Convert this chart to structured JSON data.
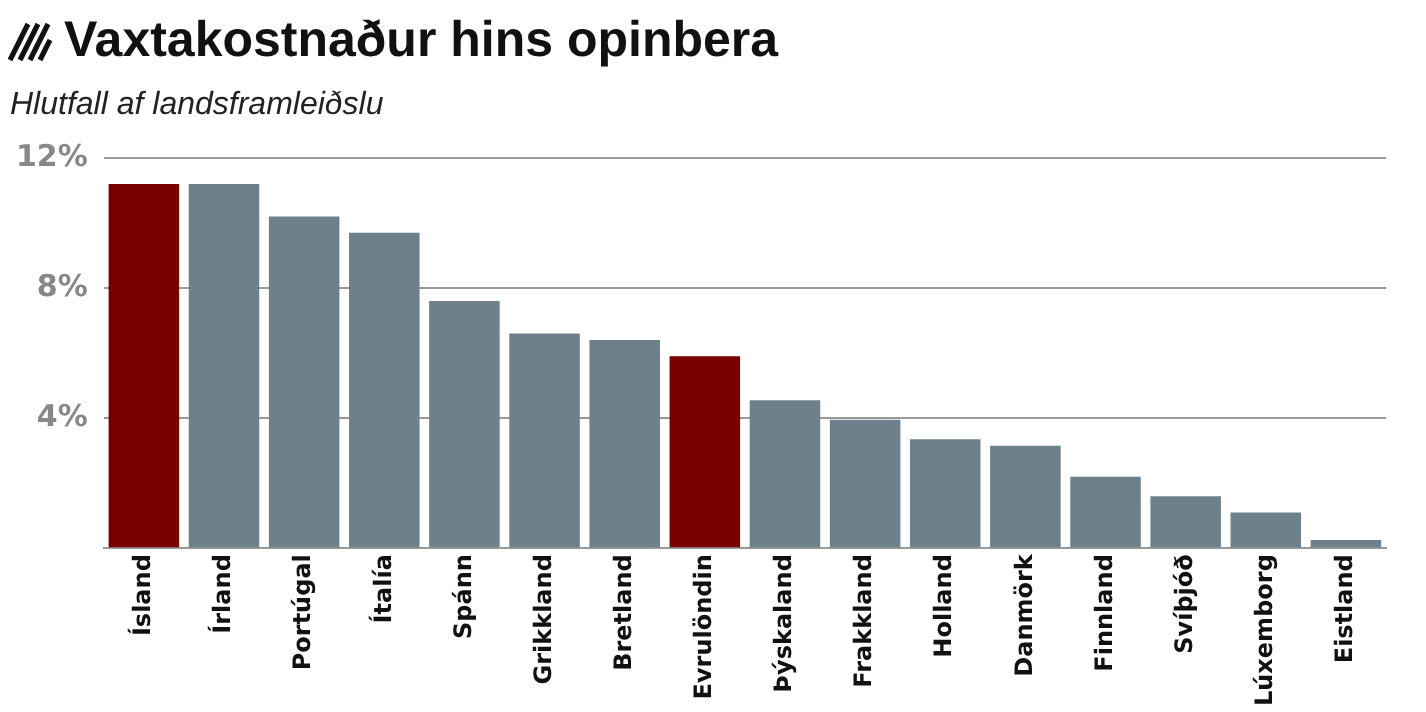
{
  "chart_data": {
    "type": "bar",
    "title": "Vaxtakostnaður hins opinbera",
    "subtitle": "Hlutfall af landsframleiðslu",
    "categories": [
      "Ísland",
      "Írland",
      "Portúgal",
      "Ítalía",
      "Spánn",
      "Grikkland",
      "Bretland",
      "Evrulöndin",
      "Þýskaland",
      "Frakkland",
      "Holland",
      "Danmörk",
      "Finnland",
      "Svíþjóð",
      "Lúxemborg",
      "Eistland"
    ],
    "values": [
      11.2,
      11.2,
      10.2,
      9.7,
      7.6,
      6.6,
      6.4,
      5.9,
      4.55,
      3.95,
      3.35,
      3.15,
      2.2,
      1.6,
      1.1,
      0.25
    ],
    "colors": [
      "#7a0000",
      "#6e808c",
      "#6e808c",
      "#6e808c",
      "#6e808c",
      "#6e808c",
      "#6e808c",
      "#7a0000",
      "#6e808c",
      "#6e808c",
      "#6e808c",
      "#6e808c",
      "#6e808c",
      "#6e808c",
      "#6e808c",
      "#6e808c"
    ],
    "ylim": [
      0,
      12
    ],
    "yticks": [
      {
        "value": 0,
        "label": null
      },
      {
        "value": 4,
        "label": "4%"
      },
      {
        "value": 8,
        "label": "8%"
      },
      {
        "value": 12,
        "label": "12%"
      }
    ],
    "grid": "y",
    "legend": false
  }
}
